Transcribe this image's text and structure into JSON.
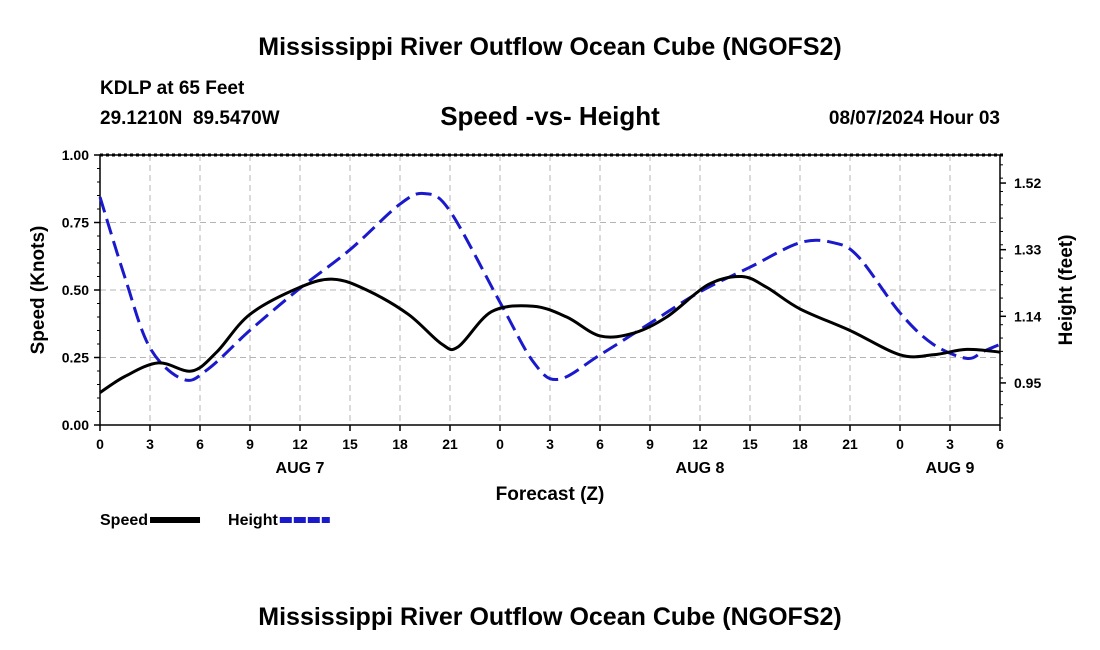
{
  "page": {
    "title": "Mississippi River Outflow Ocean Cube (NGOFS2)",
    "bottom_title": "Mississippi River Outflow Ocean Cube (NGOFS2)"
  },
  "station": {
    "name_line": "KDLP at 65 Feet",
    "coords_line": "29.1210N  89.5470W",
    "datetime": "08/07/2024 Hour 03"
  },
  "chart_data": {
    "type": "line",
    "title": "Speed -vs- Height",
    "xlabel": "Forecast (Z)",
    "ylabel_left": "Speed (Knots)",
    "ylabel_right": "Height (feet)",
    "x_range_hours": [
      0,
      54
    ],
    "x_ticks": [
      {
        "h": 0,
        "label": "0"
      },
      {
        "h": 3,
        "label": "3"
      },
      {
        "h": 6,
        "label": "6"
      },
      {
        "h": 9,
        "label": "9"
      },
      {
        "h": 12,
        "label": "12"
      },
      {
        "h": 15,
        "label": "15"
      },
      {
        "h": 18,
        "label": "18"
      },
      {
        "h": 21,
        "label": "21"
      },
      {
        "h": 24,
        "label": "0"
      },
      {
        "h": 27,
        "label": "3"
      },
      {
        "h": 30,
        "label": "6"
      },
      {
        "h": 33,
        "label": "9"
      },
      {
        "h": 36,
        "label": "12"
      },
      {
        "h": 39,
        "label": "15"
      },
      {
        "h": 42,
        "label": "18"
      },
      {
        "h": 45,
        "label": "21"
      },
      {
        "h": 48,
        "label": "0"
      },
      {
        "h": 51,
        "label": "3"
      },
      {
        "h": 54,
        "label": "6"
      }
    ],
    "day_labels": [
      {
        "h": 12,
        "label": "AUG 7"
      },
      {
        "h": 36,
        "label": "AUG 8"
      },
      {
        "h": 51,
        "label": "AUG 9"
      }
    ],
    "y_left": {
      "range": [
        0,
        1
      ],
      "ticks": [
        {
          "v": 0,
          "label": "0.00"
        },
        {
          "v": 0.25,
          "label": "0.25"
        },
        {
          "v": 0.5,
          "label": "0.50"
        },
        {
          "v": 0.75,
          "label": "0.75"
        },
        {
          "v": 1,
          "label": "1.00"
        }
      ]
    },
    "y_right": {
      "range": [
        0.83,
        1.6
      ],
      "ticks": [
        {
          "v": 0.95,
          "label": "0.95"
        },
        {
          "v": 1.14,
          "label": "1.14"
        },
        {
          "v": 1.33,
          "label": "1.33"
        },
        {
          "v": 1.52,
          "label": "1.52"
        }
      ]
    },
    "grid": true,
    "series": [
      {
        "name": "Speed",
        "axis": "left",
        "color": "#000000",
        "dash": "solid",
        "x": [
          0,
          1.5,
          3.5,
          5.5,
          7,
          9,
          12,
          14,
          16,
          18.5,
          20.5,
          21.5,
          23.5,
          26,
          28,
          30,
          32,
          34,
          36.5,
          38.5,
          40,
          42,
          45,
          48,
          50,
          52,
          54
        ],
        "y": [
          0.12,
          0.18,
          0.23,
          0.2,
          0.27,
          0.41,
          0.51,
          0.54,
          0.5,
          0.41,
          0.3,
          0.29,
          0.42,
          0.44,
          0.4,
          0.33,
          0.34,
          0.4,
          0.52,
          0.55,
          0.51,
          0.43,
          0.35,
          0.26,
          0.26,
          0.28,
          0.27
        ]
      },
      {
        "name": "Height",
        "axis": "right",
        "color": "#1a1acc",
        "dash": "dashed",
        "x": [
          0,
          1.5,
          3,
          5,
          6.5,
          9,
          12,
          15,
          18,
          19.5,
          21,
          24,
          26,
          27.5,
          30,
          33,
          36,
          39,
          42,
          44,
          45.5,
          48,
          50,
          52,
          53,
          54
        ],
        "y": [
          1.48,
          1.25,
          1.05,
          0.96,
          0.99,
          1.1,
          1.22,
          1.33,
          1.46,
          1.49,
          1.44,
          1.18,
          1.01,
          0.96,
          1.03,
          1.12,
          1.21,
          1.28,
          1.35,
          1.35,
          1.31,
          1.15,
          1.06,
          1.02,
          1.04,
          1.06
        ]
      }
    ],
    "legend": {
      "placement": "bottom-left",
      "items": [
        {
          "label": "Speed",
          "color": "#000000",
          "dash": "solid"
        },
        {
          "label": "Height",
          "color": "#1a1acc",
          "dash": "dashed"
        }
      ]
    }
  }
}
